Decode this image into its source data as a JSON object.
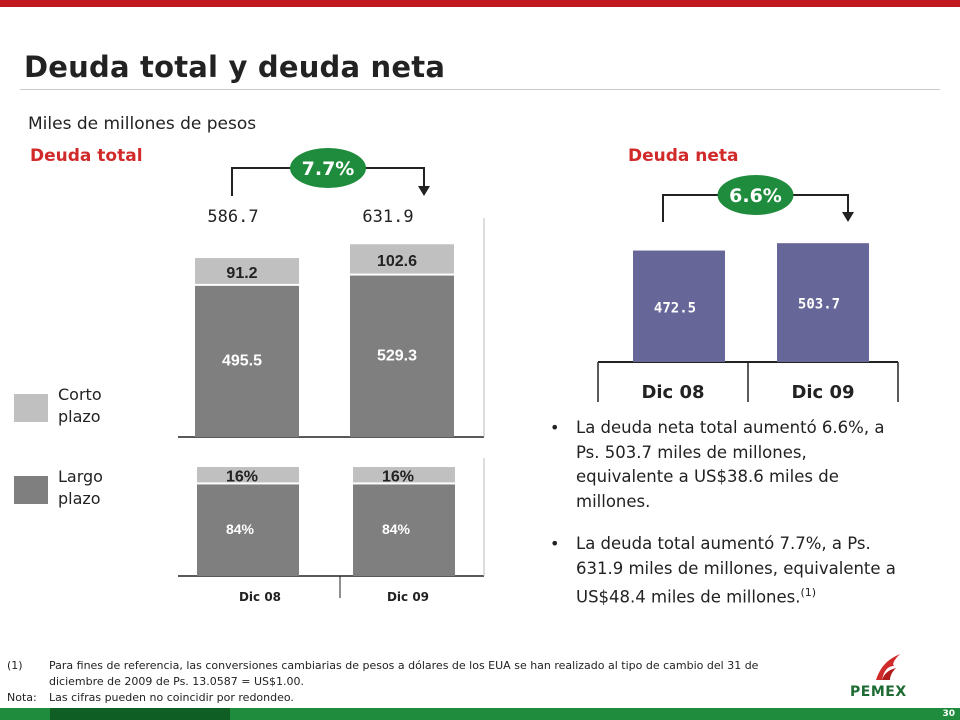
{
  "title": "Deuda total y deuda neta",
  "units": "Miles de millones de pesos",
  "colors": {
    "short_term": "#c0c0c0",
    "long_term": "#7f7f7f",
    "net_debt": "#666699",
    "growth": "#1e8c3c",
    "accent_red": "#d12a2a"
  },
  "legend": [
    {
      "label": "Corto plazo",
      "color": "#c0c0c0"
    },
    {
      "label": "Largo plazo",
      "color": "#7f7f7f"
    }
  ],
  "chart_data": [
    {
      "type": "bar",
      "title": "Deuda total",
      "categories": [
        "Dic 08",
        "Dic 09"
      ],
      "series": [
        {
          "values": [
            495.5,
            529.3
          ]
        },
        {
          "values": [
            91.2,
            102.6
          ]
        }
      ],
      "totals": [
        "586.7",
        "631.9"
      ],
      "growth": "7.7%",
      "ylim": [
        0,
        650
      ]
    },
    {
      "type": "bar",
      "categories": [
        "Dic 08",
        "Dic 09"
      ],
      "series": [
        {
          "values": [
            84,
            84
          ]
        },
        {
          "values": [
            16,
            16
          ]
        }
      ],
      "value_labels": [
        [
          "84%",
          "84%"
        ],
        [
          "16%",
          "16%"
        ]
      ],
      "ylim": [
        0,
        100
      ]
    },
    {
      "type": "bar",
      "title": "Deuda neta",
      "categories": [
        "Dic 08",
        "Dic 09"
      ],
      "values": [
        472.5,
        503.7
      ],
      "value_labels": [
        "472.5",
        "503.7"
      ],
      "growth": "6.6%",
      "ylim": [
        0,
        530
      ]
    }
  ],
  "bullets": [
    {
      "text": "La deuda neta total aumentó 6.6%, a Ps. 503.7 miles de millones, equivalente a US$38.6 miles de millones.",
      "sup": ""
    },
    {
      "text": "La deuda total aumentó 7.7%, a Ps. 631.9 miles de millones, equivalente a US$48.4 miles de millones.",
      "sup": "(1)"
    }
  ],
  "footnotes": [
    {
      "mark": "(1)",
      "text": "Para fines de referencia, las conversiones cambiarias de pesos a dólares de los EUA se han realizado al tipo de cambio del 31 de diciembre de 2009 de Ps. 13.0587 = US$1.00."
    },
    {
      "mark": "Nota:",
      "text": "Las cifras pueden no coincidir por redondeo."
    }
  ],
  "logo": "PEMEX",
  "page_number": "30"
}
